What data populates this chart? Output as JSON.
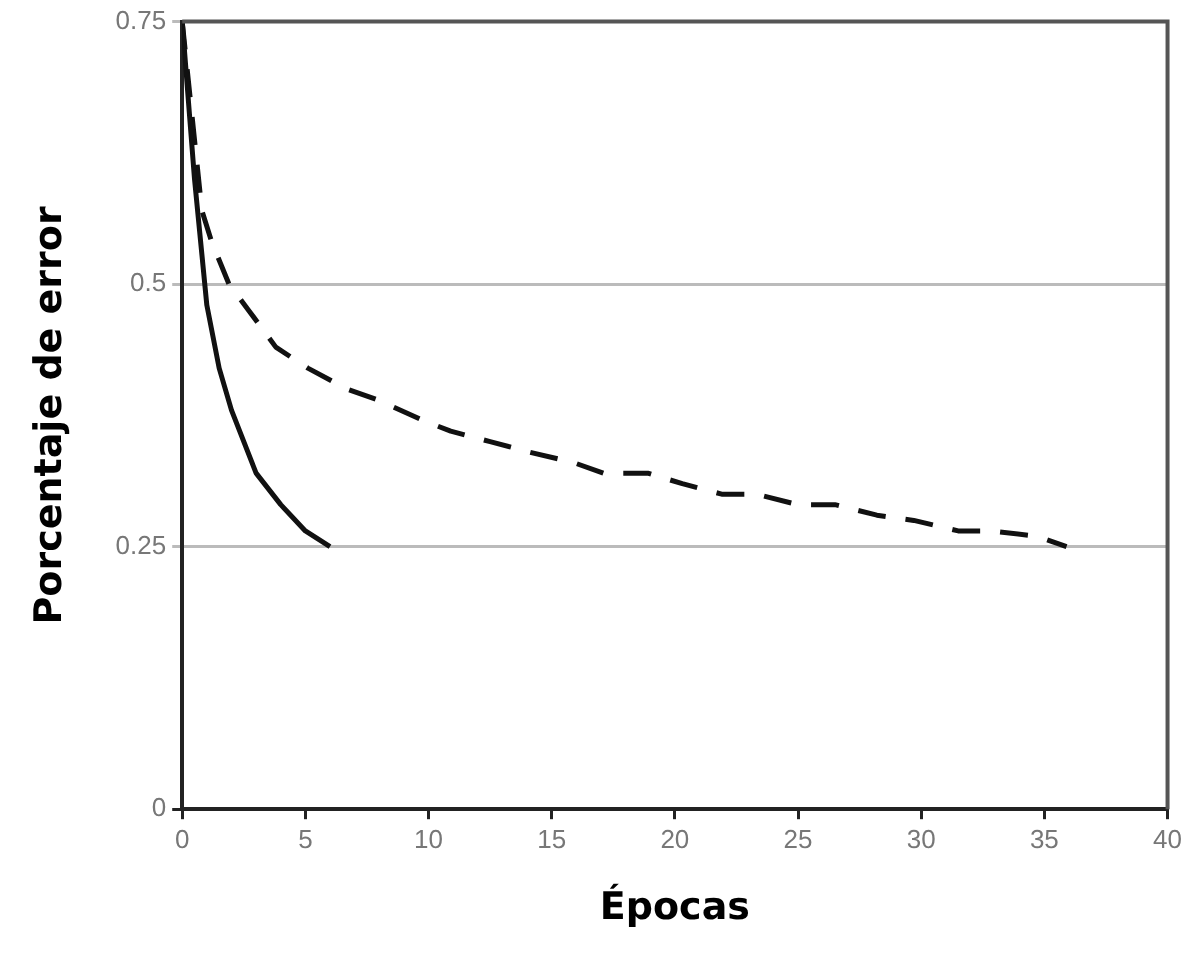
{
  "chart_data": {
    "type": "line",
    "xlabel": "Épocas",
    "ylabel": "Porcentaje de error",
    "xlim": [
      0,
      40
    ],
    "xticks": [
      0,
      5,
      10,
      15,
      20,
      25,
      30,
      35,
      40
    ],
    "ylim": [
      0,
      0.75
    ],
    "yticks": [
      0,
      0.25,
      0.5,
      0.75
    ],
    "grid": "y",
    "legend": false,
    "marker": "none",
    "series": [
      {
        "color": "#111111",
        "line_style": "solid",
        "x": [
          0,
          0.5,
          1,
          1.5,
          2,
          3,
          4,
          5,
          6
        ],
        "values": [
          0.75,
          0.6,
          0.48,
          0.42,
          0.38,
          0.32,
          0.29,
          0.265,
          0.25
        ]
      },
      {
        "color": "#111111",
        "line_style": "dashed",
        "x": [
          0,
          0.8,
          1.2,
          1.9,
          2.7,
          3.8,
          5.1,
          6.7,
          7.9,
          9.8,
          10.9,
          12.5,
          14.1,
          15.9,
          17.1,
          18.9,
          20.3,
          21.9,
          23.3,
          25,
          26.5,
          28.2,
          29.7,
          31.5,
          32.8,
          34.7,
          35.9
        ],
        "values": [
          0.75,
          0.57,
          0.54,
          0.5,
          0.475,
          0.44,
          0.42,
          0.4,
          0.39,
          0.37,
          0.36,
          0.35,
          0.34,
          0.33,
          0.32,
          0.32,
          0.31,
          0.3,
          0.3,
          0.29,
          0.29,
          0.28,
          0.275,
          0.265,
          0.265,
          0.26,
          0.25
        ]
      }
    ]
  }
}
